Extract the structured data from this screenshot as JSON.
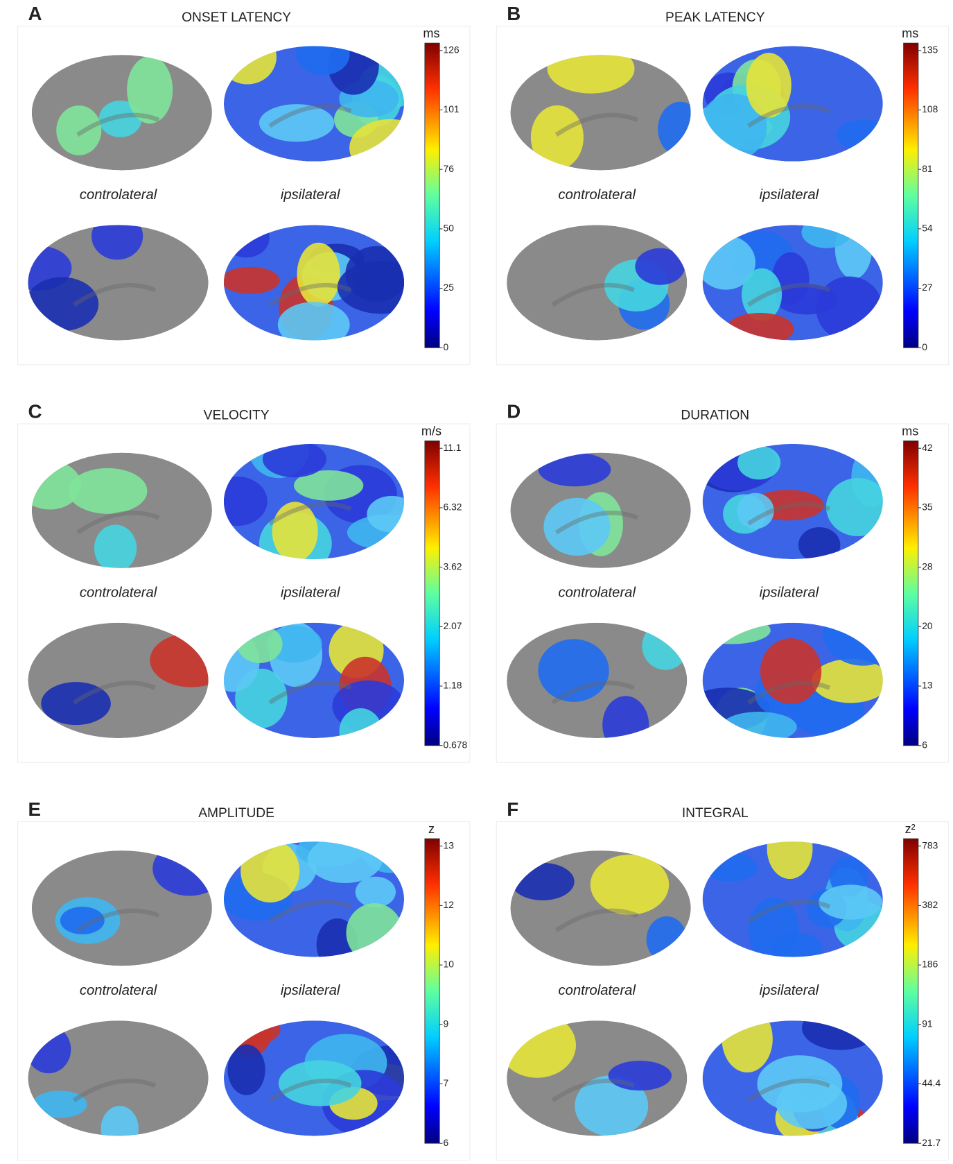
{
  "panels": [
    {
      "letter": "A",
      "title": "ONSET LATENCY",
      "unit": "ms",
      "ticks": [
        "126",
        "101",
        "76",
        "50",
        "25",
        "0"
      ],
      "views": [
        "controlateral",
        "ipsilateral"
      ]
    },
    {
      "letter": "B",
      "title": "PEAK LATENCY",
      "unit": "ms",
      "ticks": [
        "135",
        "108",
        "81",
        "54",
        "27",
        "0"
      ],
      "views": [
        "controlateral",
        "ipsilateral"
      ]
    },
    {
      "letter": "C",
      "title": "VELOCITY",
      "unit": "m/s",
      "ticks": [
        "11.1",
        "6.32",
        "3.62",
        "2.07",
        "1.18",
        "0.678"
      ],
      "views": [
        "controlateral",
        "ipsilateral"
      ]
    },
    {
      "letter": "D",
      "title": "DURATION",
      "unit": "ms",
      "ticks": [
        "42",
        "35",
        "28",
        "20",
        "13",
        "6"
      ],
      "views": [
        "controlateral",
        "ipsilateral"
      ]
    },
    {
      "letter": "E",
      "title": "AMPLITUDE",
      "unit": "z",
      "ticks": [
        "13",
        "12",
        "10",
        "9",
        "7",
        "6"
      ],
      "views": [
        "controlateral",
        "ipsilateral"
      ]
    },
    {
      "letter": "F",
      "title": "INTEGRAL",
      "unit": "z²",
      "ticks": [
        "783",
        "382",
        "186",
        "91",
        "44.4",
        "21.7"
      ],
      "views": [
        "controlateral",
        "ipsilateral"
      ]
    }
  ]
}
